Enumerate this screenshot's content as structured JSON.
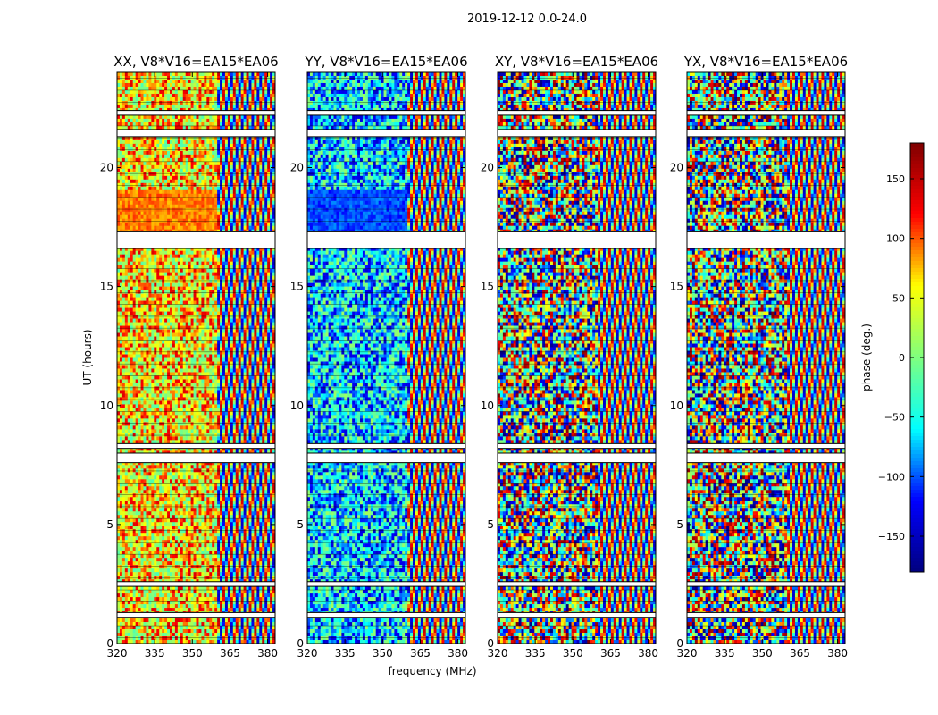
{
  "figure": {
    "suptitle": "2019-12-12 0.0-24.0",
    "xlabel": "frequency (MHz)",
    "ylabel": "UT (hours)"
  },
  "colorbar": {
    "label": "phase (deg.)",
    "range": [
      -180,
      180
    ],
    "ticks": [
      150,
      100,
      50,
      0,
      -50,
      -100,
      -150
    ],
    "tick_labels": [
      "150",
      "100",
      "50",
      "0",
      "−50",
      "−100",
      "−150"
    ],
    "colormap": "jet",
    "colors": [
      "#00007f",
      "#0000ff",
      "#00ffff",
      "#7fff7f",
      "#ffff00",
      "#ff0000",
      "#7f0000"
    ]
  },
  "chart_data": [
    {
      "type": "heatmap",
      "title": "XX, V8*V16=EA15*EA06",
      "x_range": [
        320,
        383
      ],
      "y_range": [
        0,
        24
      ],
      "x_ticks": [
        320,
        335,
        350,
        365,
        380
      ],
      "y_ticks": [
        0,
        5,
        10,
        15,
        20
      ],
      "z_quantity": "phase (deg.)",
      "z_range": [
        -180,
        180
      ],
      "flagged_hours": [
        [
          1.3,
          1.1
        ],
        [
          2.6,
          2.4
        ],
        [
          8.0,
          7.6
        ],
        [
          8.4,
          8.2
        ],
        [
          17.3,
          16.6
        ],
        [
          21.6,
          21.3
        ],
        [
          22.4,
          22.2
        ]
      ]
    },
    {
      "type": "heatmap",
      "title": "YY, V8*V16=EA15*EA06",
      "x_range": [
        320,
        383
      ],
      "y_range": [
        0,
        24
      ],
      "x_ticks": [
        320,
        335,
        350,
        365,
        380
      ],
      "y_ticks": [
        0,
        5,
        10,
        15,
        20
      ],
      "z_quantity": "phase (deg.)",
      "z_range": [
        -180,
        180
      ],
      "flagged_hours": [
        [
          1.3,
          1.1
        ],
        [
          2.6,
          2.4
        ],
        [
          8.0,
          7.6
        ],
        [
          8.4,
          8.2
        ],
        [
          17.3,
          16.6
        ],
        [
          21.6,
          21.3
        ],
        [
          22.4,
          22.2
        ]
      ]
    },
    {
      "type": "heatmap",
      "title": "XY, V8*V16=EA15*EA06",
      "x_range": [
        320,
        383
      ],
      "y_range": [
        0,
        24
      ],
      "x_ticks": [
        320,
        335,
        350,
        365,
        380
      ],
      "y_ticks": [
        0,
        5,
        10,
        15,
        20
      ],
      "z_quantity": "phase (deg.)",
      "z_range": [
        -180,
        180
      ],
      "flagged_hours": [
        [
          1.3,
          1.1
        ],
        [
          2.6,
          2.4
        ],
        [
          8.0,
          7.6
        ],
        [
          8.4,
          8.2
        ],
        [
          17.3,
          16.6
        ],
        [
          21.6,
          21.3
        ],
        [
          22.4,
          22.2
        ]
      ]
    },
    {
      "type": "heatmap",
      "title": "YX, V8*V16=EA15*EA06",
      "x_range": [
        320,
        383
      ],
      "y_range": [
        0,
        24
      ],
      "x_ticks": [
        320,
        335,
        350,
        365,
        380
      ],
      "y_ticks": [
        0,
        5,
        10,
        15,
        20
      ],
      "z_quantity": "phase (deg.)",
      "z_range": [
        -180,
        180
      ],
      "flagged_hours": [
        [
          1.3,
          1.1
        ],
        [
          2.6,
          2.4
        ],
        [
          8.0,
          7.6
        ],
        [
          8.4,
          8.2
        ],
        [
          17.3,
          16.6
        ],
        [
          21.6,
          21.3
        ],
        [
          22.4,
          22.2
        ]
      ]
    }
  ]
}
